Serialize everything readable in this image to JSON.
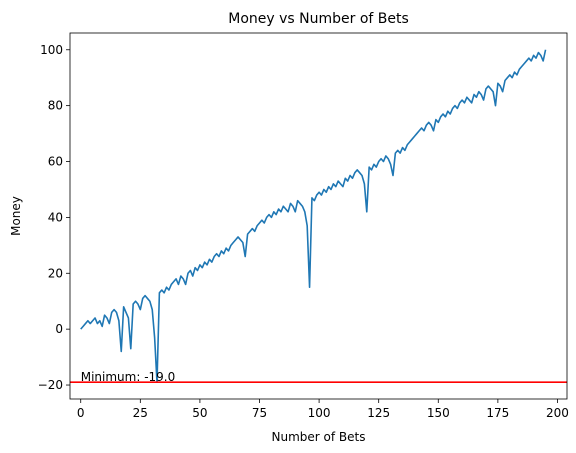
{
  "chart_data": {
    "type": "line",
    "title": "Money vs Number of Bets",
    "xlabel": "Number of Bets",
    "ylabel": "Money",
    "xlim": [
      -4.5,
      204
    ],
    "ylim": [
      -25,
      106
    ],
    "xticks": [
      0,
      25,
      50,
      75,
      100,
      125,
      150,
      175,
      200
    ],
    "yticks": [
      -20,
      0,
      20,
      40,
      60,
      80,
      100
    ],
    "grid": false,
    "series": [
      {
        "color": "#1f77b4",
        "points": [
          [
            0,
            0
          ],
          [
            1,
            1
          ],
          [
            2,
            2
          ],
          [
            3,
            3
          ],
          [
            4,
            2
          ],
          [
            5,
            3
          ],
          [
            6,
            4
          ],
          [
            7,
            2
          ],
          [
            8,
            3
          ],
          [
            9,
            1
          ],
          [
            10,
            5
          ],
          [
            11,
            4
          ],
          [
            12,
            2
          ],
          [
            13,
            6
          ],
          [
            14,
            7
          ],
          [
            15,
            6
          ],
          [
            16,
            3
          ],
          [
            17,
            -8
          ],
          [
            18,
            8
          ],
          [
            19,
            6
          ],
          [
            20,
            4
          ],
          [
            21,
            -7
          ],
          [
            22,
            9
          ],
          [
            23,
            10
          ],
          [
            24,
            9
          ],
          [
            25,
            7
          ],
          [
            26,
            11
          ],
          [
            27,
            12
          ],
          [
            28,
            11
          ],
          [
            29,
            10
          ],
          [
            30,
            7
          ],
          [
            31,
            -3
          ],
          [
            32,
            -19
          ],
          [
            33,
            13
          ],
          [
            34,
            14
          ],
          [
            35,
            13
          ],
          [
            36,
            15
          ],
          [
            37,
            14
          ],
          [
            38,
            16
          ],
          [
            39,
            17
          ],
          [
            40,
            18
          ],
          [
            41,
            16
          ],
          [
            42,
            19
          ],
          [
            43,
            18
          ],
          [
            44,
            16
          ],
          [
            45,
            20
          ],
          [
            46,
            21
          ],
          [
            47,
            19
          ],
          [
            48,
            22
          ],
          [
            49,
            21
          ],
          [
            50,
            23
          ],
          [
            51,
            22
          ],
          [
            52,
            24
          ],
          [
            53,
            23
          ],
          [
            54,
            25
          ],
          [
            55,
            24
          ],
          [
            56,
            26
          ],
          [
            57,
            27
          ],
          [
            58,
            26
          ],
          [
            59,
            28
          ],
          [
            60,
            27
          ],
          [
            61,
            29
          ],
          [
            62,
            28
          ],
          [
            63,
            30
          ],
          [
            64,
            31
          ],
          [
            65,
            32
          ],
          [
            66,
            33
          ],
          [
            67,
            32
          ],
          [
            68,
            31
          ],
          [
            69,
            26
          ],
          [
            70,
            34
          ],
          [
            71,
            35
          ],
          [
            72,
            36
          ],
          [
            73,
            35
          ],
          [
            74,
            37
          ],
          [
            75,
            38
          ],
          [
            76,
            39
          ],
          [
            77,
            38
          ],
          [
            78,
            40
          ],
          [
            79,
            41
          ],
          [
            80,
            40
          ],
          [
            81,
            42
          ],
          [
            82,
            41
          ],
          [
            83,
            43
          ],
          [
            84,
            42
          ],
          [
            85,
            44
          ],
          [
            86,
            43
          ],
          [
            87,
            42
          ],
          [
            88,
            45
          ],
          [
            89,
            44
          ],
          [
            90,
            42
          ],
          [
            91,
            46
          ],
          [
            92,
            45
          ],
          [
            93,
            44
          ],
          [
            94,
            42
          ],
          [
            95,
            37
          ],
          [
            96,
            15
          ],
          [
            97,
            47
          ],
          [
            98,
            46
          ],
          [
            99,
            48
          ],
          [
            100,
            49
          ],
          [
            101,
            48
          ],
          [
            102,
            50
          ],
          [
            103,
            49
          ],
          [
            104,
            51
          ],
          [
            105,
            50
          ],
          [
            106,
            52
          ],
          [
            107,
            51
          ],
          [
            108,
            53
          ],
          [
            109,
            52
          ],
          [
            110,
            51
          ],
          [
            111,
            54
          ],
          [
            112,
            53
          ],
          [
            113,
            55
          ],
          [
            114,
            54
          ],
          [
            115,
            56
          ],
          [
            116,
            57
          ],
          [
            117,
            56
          ],
          [
            118,
            55
          ],
          [
            119,
            52
          ],
          [
            120,
            42
          ],
          [
            121,
            58
          ],
          [
            122,
            57
          ],
          [
            123,
            59
          ],
          [
            124,
            58
          ],
          [
            125,
            60
          ],
          [
            126,
            61
          ],
          [
            127,
            60
          ],
          [
            128,
            62
          ],
          [
            129,
            61
          ],
          [
            130,
            59
          ],
          [
            131,
            55
          ],
          [
            132,
            63
          ],
          [
            133,
            64
          ],
          [
            134,
            63
          ],
          [
            135,
            65
          ],
          [
            136,
            64
          ],
          [
            137,
            66
          ],
          [
            138,
            67
          ],
          [
            139,
            68
          ],
          [
            140,
            69
          ],
          [
            141,
            70
          ],
          [
            142,
            71
          ],
          [
            143,
            72
          ],
          [
            144,
            71
          ],
          [
            145,
            73
          ],
          [
            146,
            74
          ],
          [
            147,
            73
          ],
          [
            148,
            71
          ],
          [
            149,
            75
          ],
          [
            150,
            74
          ],
          [
            151,
            76
          ],
          [
            152,
            77
          ],
          [
            153,
            76
          ],
          [
            154,
            78
          ],
          [
            155,
            77
          ],
          [
            156,
            79
          ],
          [
            157,
            80
          ],
          [
            158,
            79
          ],
          [
            159,
            81
          ],
          [
            160,
            82
          ],
          [
            161,
            81
          ],
          [
            162,
            83
          ],
          [
            163,
            82
          ],
          [
            164,
            81
          ],
          [
            165,
            84
          ],
          [
            166,
            83
          ],
          [
            167,
            85
          ],
          [
            168,
            84
          ],
          [
            169,
            82
          ],
          [
            170,
            86
          ],
          [
            171,
            87
          ],
          [
            172,
            86
          ],
          [
            173,
            85
          ],
          [
            174,
            80
          ],
          [
            175,
            88
          ],
          [
            176,
            87
          ],
          [
            177,
            85
          ],
          [
            178,
            89
          ],
          [
            179,
            90
          ],
          [
            180,
            91
          ],
          [
            181,
            90
          ],
          [
            182,
            92
          ],
          [
            183,
            91
          ],
          [
            184,
            93
          ],
          [
            185,
            94
          ],
          [
            186,
            95
          ],
          [
            187,
            96
          ],
          [
            188,
            97
          ],
          [
            189,
            96
          ],
          [
            190,
            98
          ],
          [
            191,
            97
          ],
          [
            192,
            99
          ],
          [
            193,
            98
          ],
          [
            194,
            96
          ],
          [
            195,
            100
          ]
        ]
      }
    ],
    "hline": {
      "y": -19,
      "color": "#ff0000"
    },
    "annotation": {
      "text": "Minimum: -19.0",
      "x": 0,
      "y": -19
    }
  }
}
